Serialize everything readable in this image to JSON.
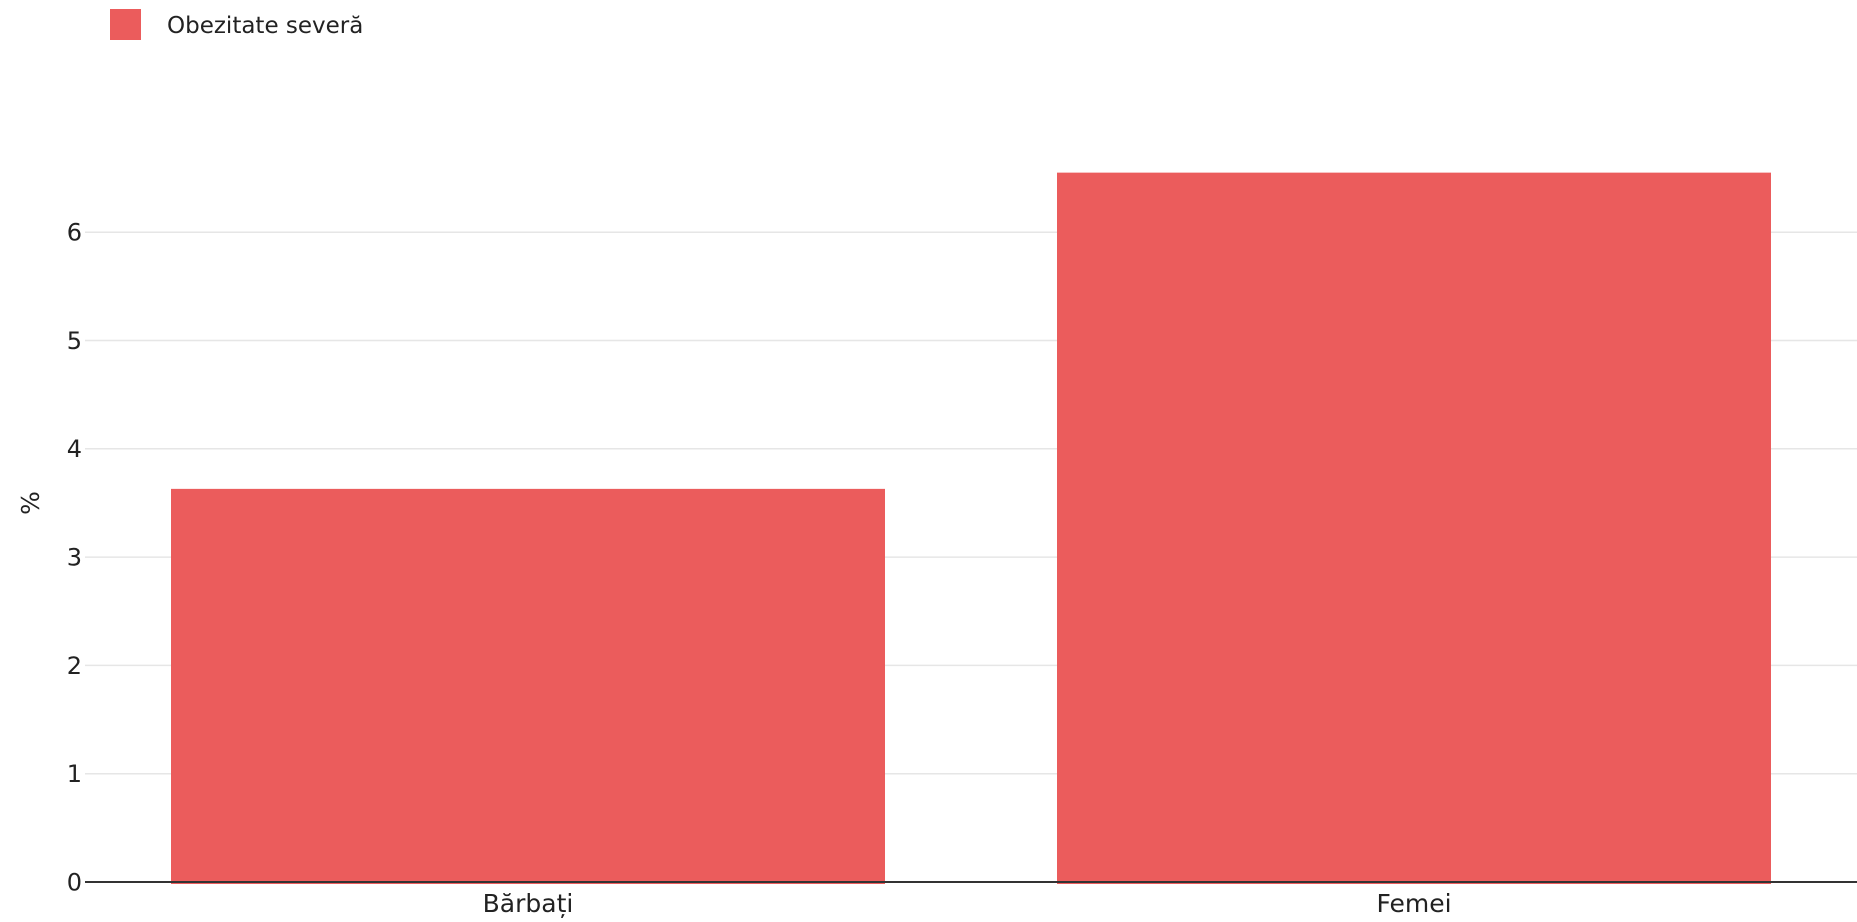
{
  "chart_data": {
    "type": "bar",
    "categories": [
      "Bărbați",
      "Femei"
    ],
    "series": [
      {
        "name": "Obezitate severă",
        "values": [
          3.63,
          6.55
        ],
        "color": "#EB5C5C"
      }
    ],
    "xlabel": "",
    "ylabel": "%",
    "ylim": [
      0,
      7
    ],
    "yticks": [
      0,
      1,
      2,
      3,
      4,
      5,
      6
    ],
    "grid": true,
    "legend": "top-left",
    "colors": {
      "bar": "#EB5C5C",
      "grid": "#E6E6E6",
      "axis": "#333333",
      "text": "#222222"
    }
  }
}
